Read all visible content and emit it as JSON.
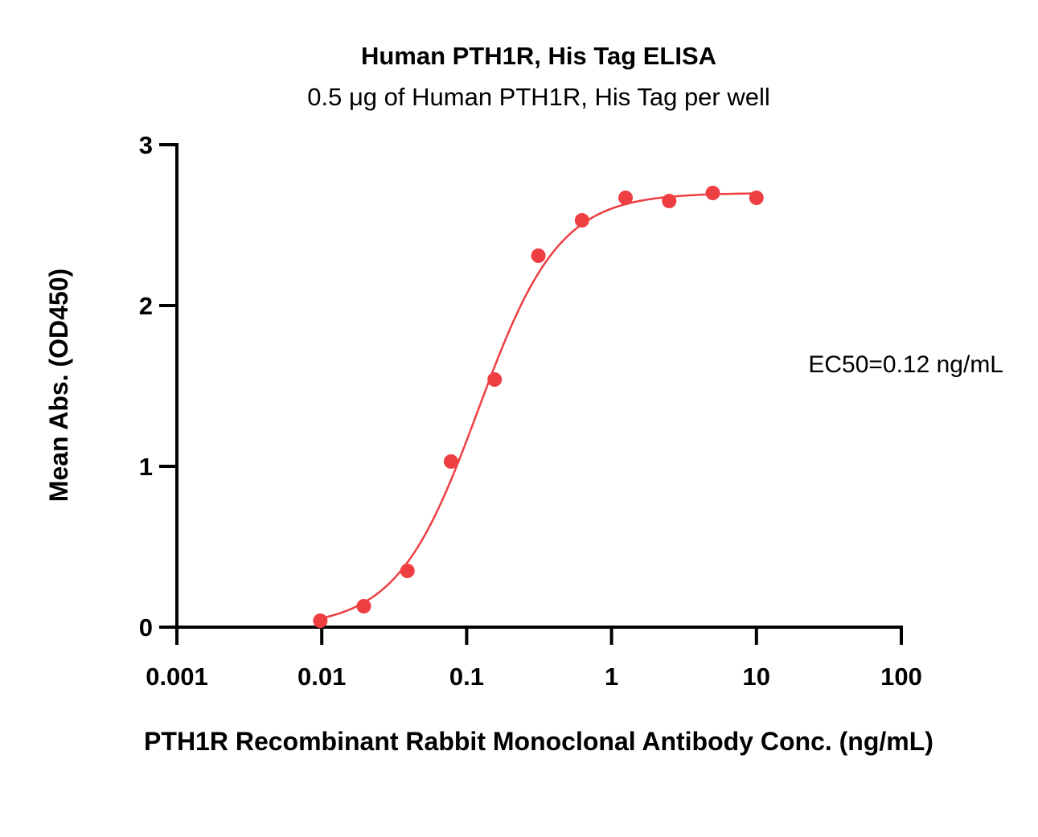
{
  "chart_data": {
    "type": "scatter",
    "title": "Human PTH1R, His Tag ELISA",
    "subtitle": "0.5 μg of Human PTH1R, His Tag per well",
    "xlabel": "PTH1R Recombinant Rabbit Monoclonal Antibody Conc. (ng/mL)",
    "ylabel": "Mean Abs. (OD450)",
    "x_scale": "log",
    "xlim": [
      0.001,
      100
    ],
    "ylim": [
      0,
      3
    ],
    "x_ticks": [
      0.001,
      0.01,
      0.1,
      1,
      10,
      100
    ],
    "x_tick_labels": [
      "0.001",
      "0.01",
      "0.1",
      "1",
      "10",
      "100"
    ],
    "y_ticks": [
      0,
      1,
      2,
      3
    ],
    "y_tick_labels": [
      "0",
      "1",
      "2",
      "3"
    ],
    "grid": false,
    "series": [
      {
        "color": "#ee3e42",
        "points": [
          {
            "x": 0.00977,
            "y": 0.04
          },
          {
            "x": 0.0195,
            "y": 0.13
          },
          {
            "x": 0.039,
            "y": 0.35
          },
          {
            "x": 0.078,
            "y": 1.03
          },
          {
            "x": 0.156,
            "y": 1.54
          },
          {
            "x": 0.3125,
            "y": 2.31
          },
          {
            "x": 0.625,
            "y": 2.53
          },
          {
            "x": 1.25,
            "y": 2.67
          },
          {
            "x": 2.5,
            "y": 2.65
          },
          {
            "x": 5,
            "y": 2.7
          },
          {
            "x": 10,
            "y": 2.67
          }
        ],
        "fit": {
          "model": "4PL",
          "bottom": 0.0,
          "top": 2.7,
          "ec50": 0.12,
          "hill": 1.55
        }
      }
    ],
    "annotations": [
      {
        "text": "EC50=0.12 ng/mL"
      }
    ]
  }
}
